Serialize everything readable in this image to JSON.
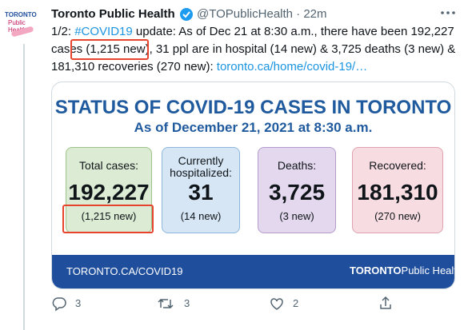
{
  "avatar": {
    "lines": [
      "TORONTO",
      "Public Health"
    ]
  },
  "tweet": {
    "author": "Toronto Public Health",
    "handle": "@TOPublicHealth",
    "separator": "·",
    "time": "22m",
    "lines": [
      [
        "1/2: ",
        "#COVID19",
        " update: As of Dec 21 at 8:30 a.m., there have been 192,227"
      ],
      [
        "cases (1,215 new), 31 ppl are in hospital (14 new) & 3,725 deaths (3 new) &"
      ],
      [
        "181,310 recoveries (270 new): ",
        "toronto.ca/home/covid-19/…"
      ]
    ]
  },
  "card": {
    "title": "STATUS OF COVID-19 CASES IN TORONTO",
    "subtitle": "As of December 21, 2021 at 8:30 a.m.",
    "boxes": [
      {
        "label": [
          "Total cases:"
        ],
        "number": "192,227",
        "sub": "(1,215 new)"
      },
      {
        "label": [
          "Currently",
          "hospitalized:"
        ],
        "number": "31",
        "sub": "(14 new)"
      },
      {
        "label": [
          "Deaths:"
        ],
        "number": "3,725",
        "sub": "(3 new)"
      },
      {
        "label": [
          "Recovered:"
        ],
        "number": "181,310",
        "sub": "(270 new)"
      }
    ],
    "footer_url": "TORONTO.CA/COVID19",
    "footer_logo": [
      "TORONTO",
      "Public Health"
    ]
  },
  "actions": {
    "replies": "3",
    "retweets": "3",
    "likes": "2"
  }
}
